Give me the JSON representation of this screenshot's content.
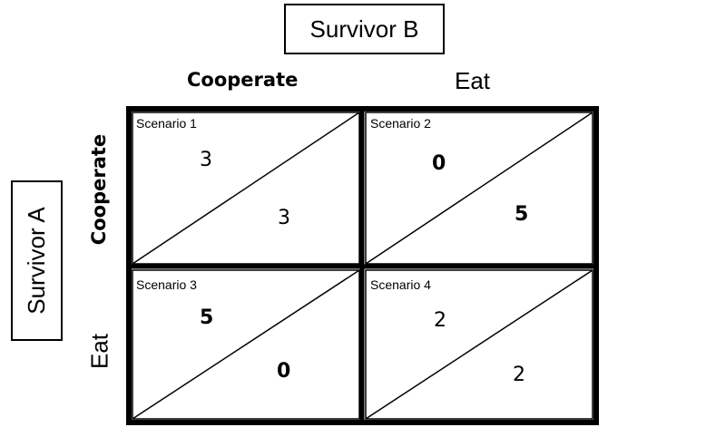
{
  "players": {
    "column": "Survivor B",
    "row": "Survivor A"
  },
  "column_strategies": [
    "Cooperate",
    "Eat"
  ],
  "row_strategies": [
    "Cooperate",
    "Eat"
  ],
  "cells": [
    {
      "scenario": "Scenario 1",
      "row_payoff": "3",
      "col_payoff": "3"
    },
    {
      "scenario": "Scenario 2",
      "row_payoff": "0",
      "col_payoff": "5"
    },
    {
      "scenario": "Scenario 3",
      "row_payoff": "5",
      "col_payoff": "0"
    },
    {
      "scenario": "Scenario 4",
      "row_payoff": "2",
      "col_payoff": "2"
    }
  ]
}
